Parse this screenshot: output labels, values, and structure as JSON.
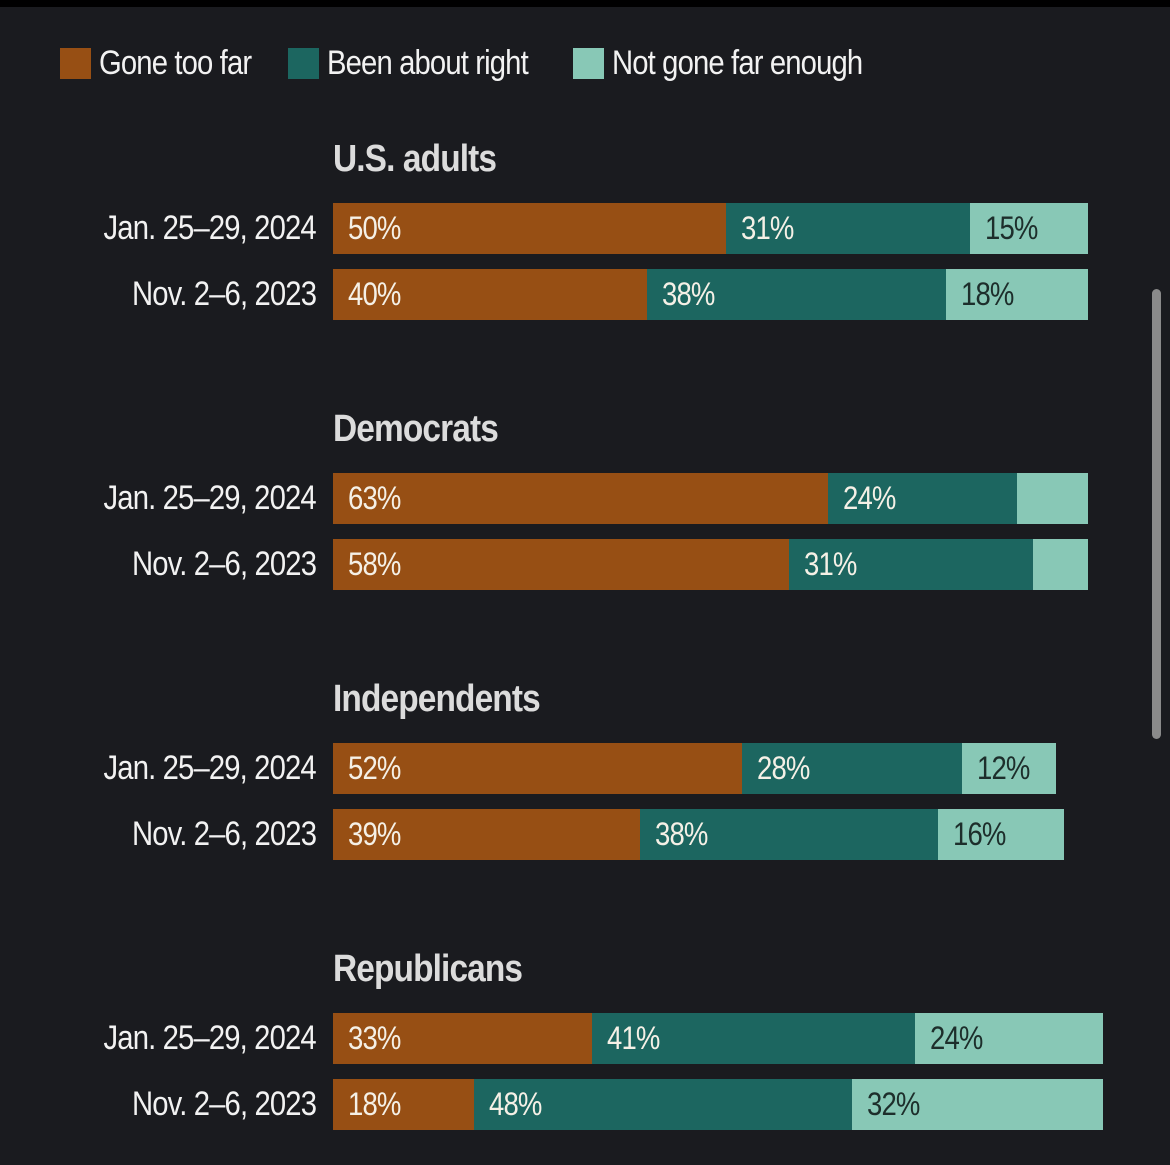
{
  "colors": {
    "gone_too_far": "#974f14",
    "been_about_right": "#1c6660",
    "not_gone_far_enough": "#88c8b6",
    "background": "#1a1b1f",
    "label_light": "#f5f0e6",
    "label_dark": "#1d2e2b"
  },
  "legend": [
    {
      "label": "Gone too far",
      "color_key": "gone_too_far"
    },
    {
      "label": "Been about right",
      "color_key": "been_about_right"
    },
    {
      "label": "Not gone far enough",
      "color_key": "not_gone_far_enough"
    }
  ],
  "chart_data": {
    "type": "bar",
    "orientation": "horizontal",
    "stacked": true,
    "title": "",
    "xlabel": "",
    "ylabel": "",
    "unit": "%",
    "xlim": [
      0,
      100
    ],
    "grid": false,
    "legend_position": "top-left",
    "series_names": [
      "Gone too far",
      "Been about right",
      "Not gone far enough"
    ],
    "groups": [
      {
        "title": "U.S. adults",
        "rows": [
          {
            "label": "Jan. 25–29, 2024",
            "values": [
              50,
              31,
              15
            ],
            "labels": [
              "50%",
              "31%",
              "15%"
            ]
          },
          {
            "label": "Nov. 2–6, 2023",
            "values": [
              40,
              38,
              18
            ],
            "labels": [
              "40%",
              "38%",
              "18%"
            ]
          }
        ]
      },
      {
        "title": "Democrats",
        "rows": [
          {
            "label": "Jan. 25–29, 2024",
            "values": [
              63,
              24,
              9
            ],
            "labels": [
              "63%",
              "24%",
              ""
            ]
          },
          {
            "label": "Nov. 2–6, 2023",
            "values": [
              58,
              31,
              7
            ],
            "labels": [
              "58%",
              "31%",
              ""
            ]
          }
        ]
      },
      {
        "title": "Independents",
        "rows": [
          {
            "label": "Jan. 25–29, 2024",
            "values": [
              52,
              28,
              12
            ],
            "labels": [
              "52%",
              "28%",
              "12%"
            ]
          },
          {
            "label": "Nov. 2–6, 2023",
            "values": [
              39,
              38,
              16
            ],
            "labels": [
              "39%",
              "38%",
              "16%"
            ]
          }
        ]
      },
      {
        "title": "Republicans",
        "rows": [
          {
            "label": "Jan. 25–29, 2024",
            "values": [
              33,
              41,
              24
            ],
            "labels": [
              "33%",
              "41%",
              "24%"
            ]
          },
          {
            "label": "Nov. 2–6, 2023",
            "values": [
              18,
              48,
              32
            ],
            "labels": [
              "18%",
              "48%",
              "32%"
            ]
          }
        ]
      }
    ]
  }
}
